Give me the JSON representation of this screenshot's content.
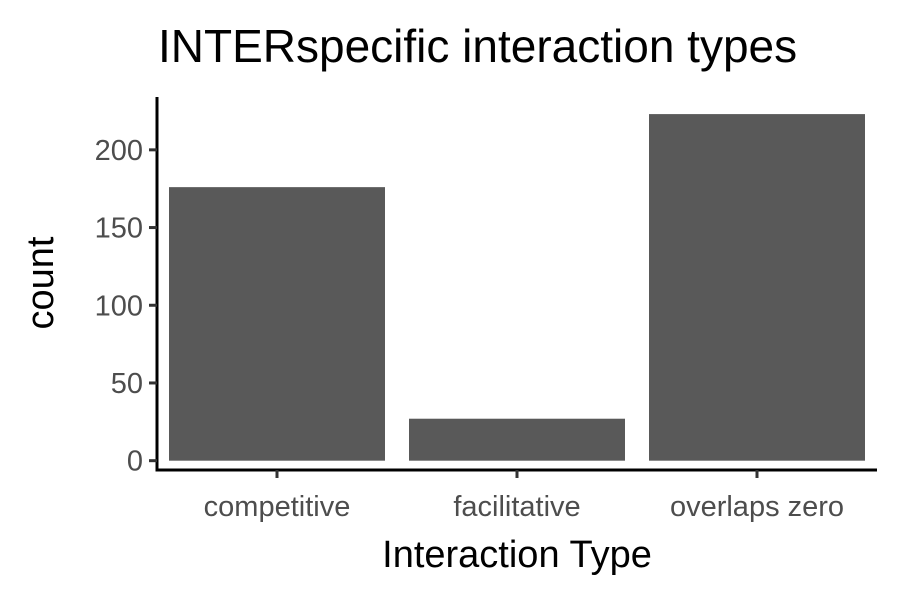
{
  "chart_data": {
    "type": "bar",
    "title": "INTERspecific interaction types",
    "xlabel": "Interaction Type",
    "ylabel": "count",
    "categories": [
      "competitive",
      "facilitative",
      "overlaps zero"
    ],
    "values": [
      176,
      27,
      223
    ],
    "ylim": [
      -6,
      234
    ],
    "yticks": [
      0,
      50,
      100,
      150,
      200
    ],
    "grid": false,
    "legend": "none",
    "bar_color": "#595959"
  }
}
